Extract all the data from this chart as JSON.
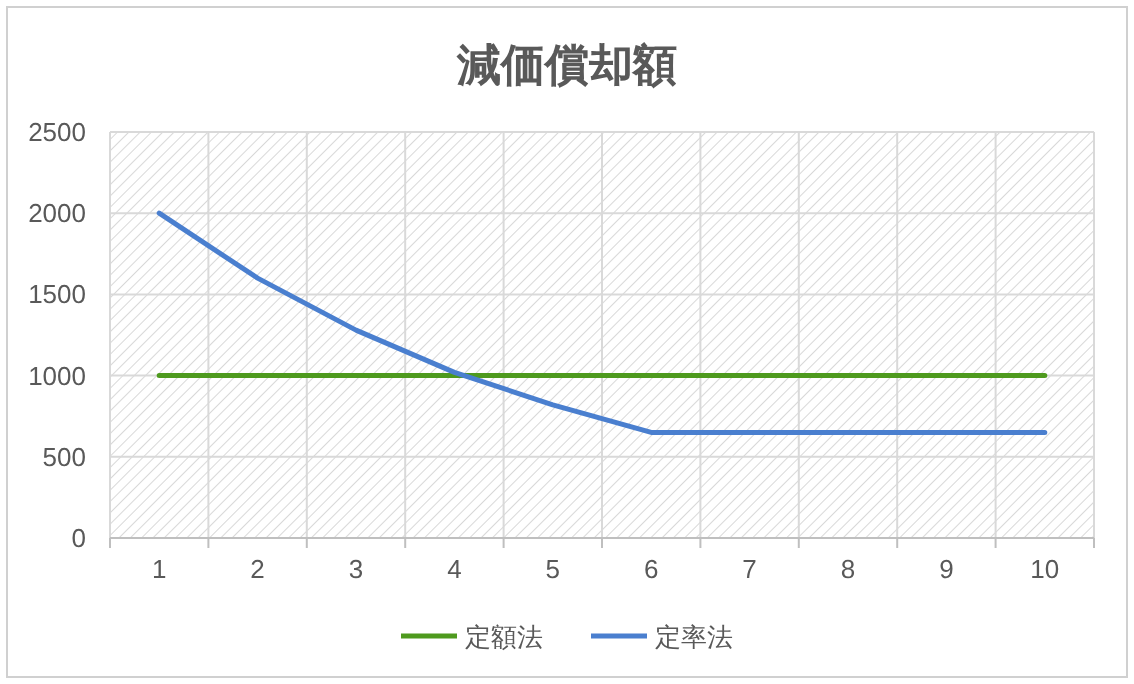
{
  "chart_data": {
    "type": "line",
    "title": "減価償却額",
    "categories": [
      "1",
      "2",
      "3",
      "4",
      "5",
      "6",
      "7",
      "8",
      "9",
      "10"
    ],
    "series": [
      {
        "name": "定額法",
        "color": "#4e9a1e",
        "values": [
          1000,
          1000,
          1000,
          1000,
          1000,
          1000,
          1000,
          1000,
          1000,
          1000
        ]
      },
      {
        "name": "定率法",
        "color": "#4a7fcf",
        "values": [
          2000,
          1600,
          1280,
          1020,
          820,
          650,
          650,
          650,
          650,
          650
        ]
      }
    ],
    "ylim": [
      0,
      2500
    ],
    "yticks": [
      0,
      500,
      1000,
      1500,
      2000,
      2500
    ],
    "grid": true,
    "legend": "bottom",
    "marker": "none",
    "line_style": "solid"
  }
}
